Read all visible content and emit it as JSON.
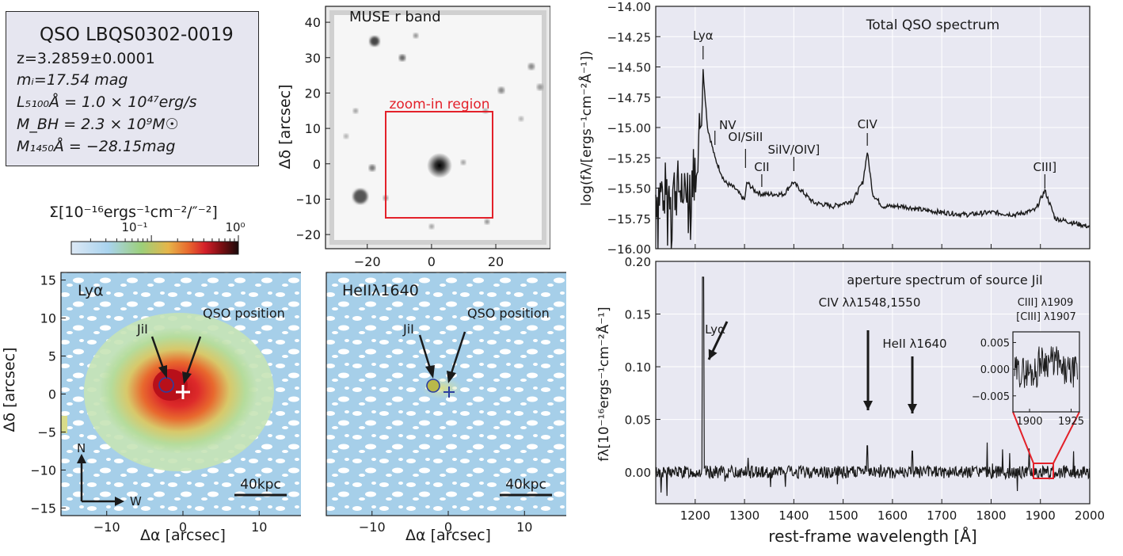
{
  "info_box": {
    "title": "QSO LBQS0302-0019",
    "lines": [
      "z=3.2859±0.0001",
      "mᵢ=17.54 mag",
      "L₅₁₀₀Å = 1.0 × 10⁴⁷erg/s",
      "M_BH = 2.3 × 10⁹M☉",
      "M₁₄₅₀Å = −28.15mag"
    ]
  },
  "colorbar": {
    "label": "Σ[10⁻¹⁶ergs⁻¹cm⁻²/″⁻²]",
    "ticks": [
      "10⁻¹",
      "10⁰"
    ],
    "scale": "log",
    "colors": [
      "#dce8f5",
      "#a9d3ee",
      "#9ccf7a",
      "#e6b54a",
      "#e8692e",
      "#d41f2a",
      "#7a0e12",
      "#1a0a0a"
    ]
  },
  "panels": {
    "rband": {
      "label": "MUSE r band",
      "region_label": "zoom-in region",
      "xticks": [
        "−20",
        "0",
        "20"
      ],
      "yticks": [
        "40",
        "30",
        "20",
        "10",
        "0",
        "−10",
        "−20"
      ],
      "ylabel": "Δδ [arcsec]"
    },
    "lya_map": {
      "label": "Lyα",
      "ann_src": "JiI",
      "ann_qso": "QSO position",
      "scalebar": "40kpc",
      "compass_n": "N",
      "compass_w": "W",
      "xticks": [
        "−10",
        "0",
        "10"
      ],
      "yticks": [
        "15",
        "10",
        "5",
        "0",
        "−5",
        "−10",
        "−15"
      ],
      "xlabel": "Δα [arcsec]",
      "ylabel": "Δδ [arcsec]"
    },
    "heii_map": {
      "label": "HeIIλ1640",
      "ann_src": "JiI",
      "ann_qso": "QSO position",
      "scalebar": "40kpc",
      "xticks": [
        "−10",
        "0",
        "10"
      ],
      "xlabel": "Δα [arcsec]"
    }
  },
  "chart_data": [
    {
      "type": "line",
      "title": "Total QSO spectrum",
      "ylabel": "log(fλ/[ergs⁻¹cm⁻²Å⁻¹])",
      "xlim": [
        1120,
        2000
      ],
      "ylim": [
        -16.0,
        -14.0
      ],
      "yticks": [
        "−14.00",
        "−14.25",
        "−14.50",
        "−14.75",
        "−15.00",
        "−15.25",
        "−15.50",
        "−15.75",
        "−16.00"
      ],
      "grid": true,
      "x": [
        1120,
        1150,
        1180,
        1200,
        1210,
        1216,
        1225,
        1240,
        1260,
        1280,
        1300,
        1305,
        1320,
        1335,
        1350,
        1380,
        1398,
        1410,
        1440,
        1480,
        1520,
        1540,
        1549,
        1560,
        1580,
        1620,
        1660,
        1700,
        1750,
        1800,
        1850,
        1890,
        1909,
        1930,
        1960,
        2000
      ],
      "y": [
        -15.55,
        -15.5,
        -15.5,
        -15.35,
        -15.0,
        -14.53,
        -15.0,
        -15.25,
        -15.45,
        -15.5,
        -15.6,
        -15.45,
        -15.52,
        -15.55,
        -15.55,
        -15.55,
        -15.45,
        -15.5,
        -15.62,
        -15.65,
        -15.6,
        -15.45,
        -15.2,
        -15.55,
        -15.65,
        -15.65,
        -15.68,
        -15.7,
        -15.72,
        -15.7,
        -15.72,
        -15.68,
        -15.52,
        -15.75,
        -15.78,
        -15.82
      ],
      "annotations": [
        {
          "label": "Lyα",
          "x": 1216
        },
        {
          "label": "NV",
          "x": 1240
        },
        {
          "label": "OI/SiII",
          "x": 1302
        },
        {
          "label": "CII",
          "x": 1335
        },
        {
          "label": "SiIV/OIV]",
          "x": 1400
        },
        {
          "label": "CIV",
          "x": 1549
        },
        {
          "label": "CIII]",
          "x": 1909
        }
      ]
    },
    {
      "type": "line",
      "title": "aperture spectrum of source JiI",
      "xlabel": "rest-frame wavelength [Å]",
      "ylabel": "fλ[10⁻¹⁶ergs⁻¹cm⁻²Å⁻¹]",
      "xlim": [
        1120,
        2000
      ],
      "ylim": [
        -0.03,
        0.2
      ],
      "xticks": [
        "1200",
        "1300",
        "1400",
        "1500",
        "1600",
        "1700",
        "1800",
        "1900",
        "2000"
      ],
      "yticks": [
        "0.20",
        "0.15",
        "0.10",
        "0.05",
        "0.00"
      ],
      "grid": true,
      "peaks": [
        {
          "x": 1216,
          "y": 0.185
        },
        {
          "x": 1549,
          "y": 0.025
        },
        {
          "x": 1640,
          "y": 0.02
        }
      ],
      "annotations": [
        {
          "label": "Lyα",
          "x": 1216
        },
        {
          "label": "CIV λλ1548,1550",
          "x": 1549
        },
        {
          "label": "HeII λ1640",
          "x": 1640
        }
      ],
      "inset": {
        "label1": "CIII] λ1909",
        "label2": "[CIII] λ1907",
        "xticks": [
          "1900",
          "1925"
        ],
        "yticks": [
          "0.005",
          "0.000",
          "−0.005"
        ],
        "xlim": [
          1890,
          1930
        ],
        "ylim": [
          -0.008,
          0.007
        ]
      }
    }
  ]
}
